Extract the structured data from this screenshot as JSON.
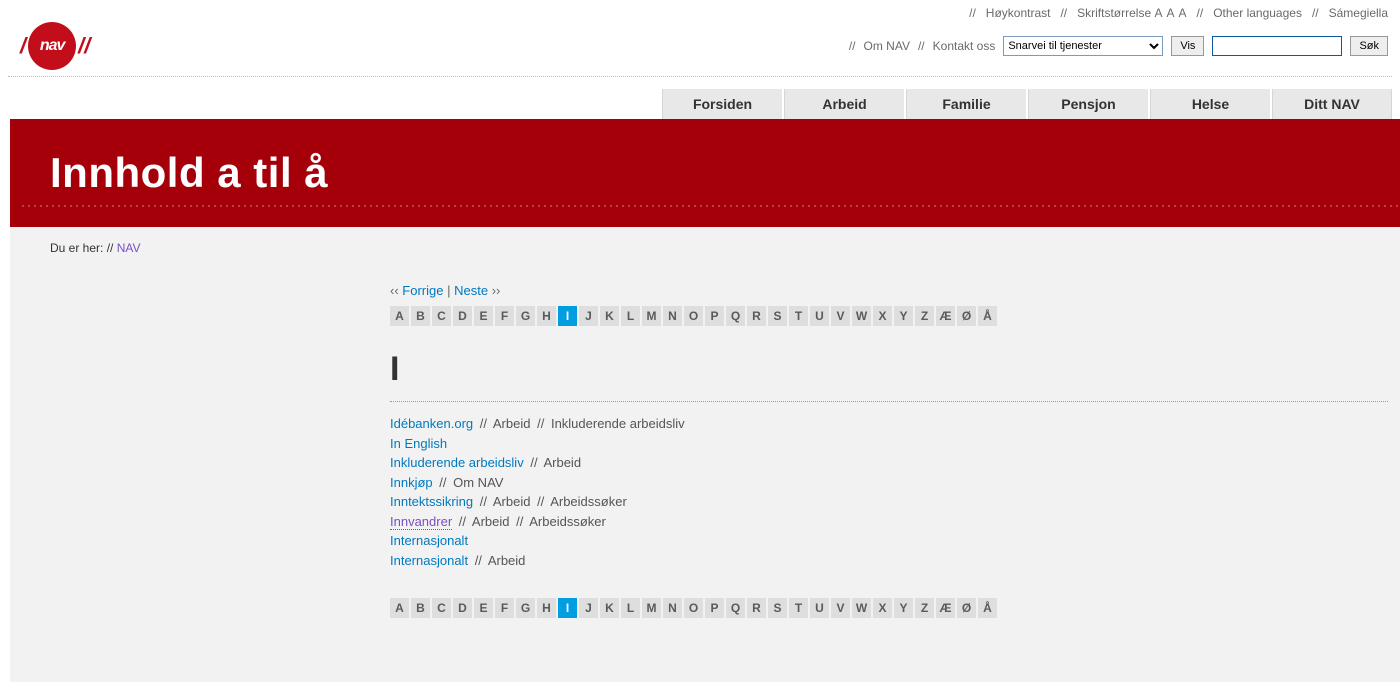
{
  "utility": {
    "hoykontrast": "Høykontrast",
    "skriftstorrelse": "Skriftstørrelse",
    "a1": "A",
    "a2": "A",
    "a3": "A",
    "other_languages": "Other languages",
    "samegiella": "Sámegiella",
    "om_nav": "Om NAV",
    "kontakt_oss": "Kontakt oss",
    "shortcut_selected": "Snarvei til tjenester",
    "vis": "Vis",
    "sok": "Søk"
  },
  "logo": {
    "text": "nav"
  },
  "nav": {
    "items": [
      {
        "label": "Forsiden"
      },
      {
        "label": "Arbeid"
      },
      {
        "label": "Familie"
      },
      {
        "label": "Pensjon"
      },
      {
        "label": "Helse"
      },
      {
        "label": "Ditt NAV"
      }
    ]
  },
  "title": "Innhold a til å",
  "breadcrumb": {
    "prefix": "Du er her:",
    "link": "NAV"
  },
  "pager": {
    "prev_arrows": "‹‹",
    "prev": "Forrige",
    "sep": "|",
    "next": "Neste",
    "next_arrows": "››"
  },
  "alphabet": [
    "A",
    "B",
    "C",
    "D",
    "E",
    "F",
    "G",
    "H",
    "I",
    "J",
    "K",
    "L",
    "M",
    "N",
    "O",
    "P",
    "Q",
    "R",
    "S",
    "T",
    "U",
    "V",
    "W",
    "X",
    "Y",
    "Z",
    "Æ",
    "Ø",
    "Å"
  ],
  "active_letter": "I",
  "current_letter_heading": "I",
  "links": [
    {
      "title": "Idébanken.org",
      "meta": [
        "Arbeid",
        "Inkluderende arbeidsliv"
      ]
    },
    {
      "title": "In English",
      "meta": []
    },
    {
      "title": "Inkluderende arbeidsliv",
      "meta": [
        "Arbeid"
      ]
    },
    {
      "title": "Innkjøp",
      "meta": [
        "Om NAV"
      ]
    },
    {
      "title": "Inntektssikring",
      "meta": [
        "Arbeid",
        "Arbeidssøker"
      ]
    },
    {
      "title": "Innvandrer",
      "meta": [
        "Arbeid",
        "Arbeidssøker"
      ],
      "visited": true
    },
    {
      "title": "Internasjonalt",
      "meta": []
    },
    {
      "title": "Internasjonalt",
      "meta": [
        "Arbeid"
      ]
    }
  ],
  "colors": {
    "brand_red": "#c20e1a",
    "band_red": "#a5000a",
    "link_blue": "#0079c1",
    "active_blue": "#009de0",
    "visited": "#7a4fbf"
  }
}
